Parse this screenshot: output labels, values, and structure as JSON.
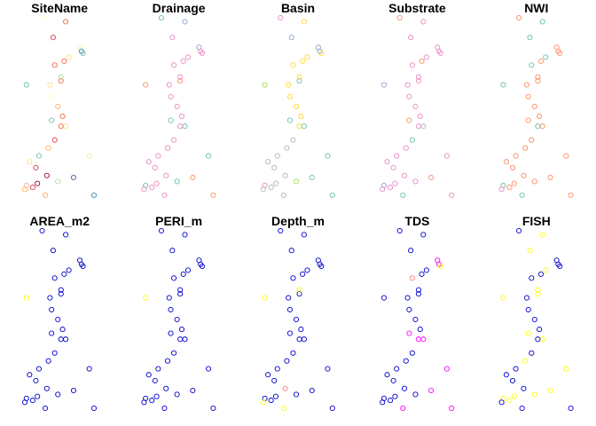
{
  "chart_data": {
    "type": "scatter",
    "layout": {
      "rows": 2,
      "cols": 5
    },
    "marker": "open-circle",
    "points": [
      [
        1.0,
        0.9
      ],
      [
        0.0,
        0.56
      ],
      [
        2.2,
        0.58
      ],
      [
        1.6,
        0.38
      ],
      [
        2.5,
        0.35
      ],
      [
        0.0,
        0.05
      ],
      [
        2.0,
        0.07
      ],
      [
        4.0,
        0.2
      ],
      [
        3.0,
        0.09
      ],
      [
        4.3,
        0.0
      ],
      [
        2.5,
        0.88
      ],
      [
        1.7,
        0.8
      ],
      [
        3.4,
        0.75
      ],
      [
        3.5,
        0.73
      ],
      [
        3.6,
        0.72
      ],
      [
        2.7,
        0.7
      ],
      [
        2.4,
        0.68
      ],
      [
        1.8,
        0.66
      ],
      [
        2.2,
        0.6
      ],
      [
        1.5,
        0.56
      ],
      [
        1.6,
        0.5
      ],
      [
        2.0,
        0.45
      ],
      [
        2.3,
        0.4
      ],
      [
        2.2,
        0.35
      ],
      [
        1.8,
        0.28
      ],
      [
        1.4,
        0.24
      ],
      [
        0.8,
        0.2
      ],
      [
        0.2,
        0.17
      ],
      [
        0.6,
        0.14
      ],
      [
        1.3,
        0.1
      ],
      [
        0.7,
        0.06
      ],
      [
        0.4,
        0.04
      ],
      [
        -0.1,
        0.03
      ],
      [
        1.2,
        0.0
      ]
    ],
    "panels": [
      {
        "title": "SiteName",
        "colors": [
          "#FFFFBF",
          "#66C2A5",
          "#F46D43",
          "#66C2A5",
          "#FEE08B",
          "#FDAEA0",
          "#ABDDA4",
          "#E6F598",
          "#5E4FA2",
          "#3288BD",
          "#F46D43",
          "#D53E4F",
          "#E6F598",
          "#3288BD",
          "#66C2A5",
          "#FEE08B",
          "#F46D43",
          "#F46D43",
          "#ABDDA4",
          "#FEE08B",
          "#FFFFBF",
          "#FDAE61",
          "#F46D43",
          "#F46D43",
          "#D53E4F",
          "#FDAE61",
          "#66C2A5",
          "#FEE08B",
          "#D53E4F",
          "#9E0142",
          "#9E0142",
          "#D53E4F",
          "#FDAE61",
          "#FDAE61"
        ]
      },
      {
        "title": "Drainage",
        "colors": [
          "#66C2A5",
          "#FC8D62",
          "#FC8D62",
          "#66C2A5",
          "#66C2A5",
          "#66C2A5",
          "#66C2A5",
          "#66C2A5",
          "#FC8D62",
          "#FC8D62",
          "#8DA0CB",
          "#E78AC3",
          "#8DA0CB",
          "#E78AC3",
          "#E78AC3",
          "#E78AC3",
          "#E78AC3",
          "#E78AC3",
          "#E78AC3",
          "#E78AC3",
          "#E78AC3",
          "#E78AC3",
          "#E78AC3",
          "#E78AC3",
          "#E78AC3",
          "#E78AC3",
          "#E78AC3",
          "#E78AC3",
          "#E78AC3",
          "#E78AC3",
          "#E78AC3",
          "#E78AC3",
          "#E78AC3",
          "#E78AC3"
        ]
      },
      {
        "title": "Basin",
        "colors": [
          "#E78AC3",
          "#A6D854",
          "#66C2A5",
          "#66C2A5",
          "#66C2A5",
          "#E78AC3",
          "#A6D854",
          "#66C2A5",
          "#66C2A5",
          "#66C2A5",
          "#FFD92F",
          "#8DA0CB",
          "#8DA0CB",
          "#8DA0CB",
          "#FFD92F",
          "#FFD92F",
          "#FFD92F",
          "#FFD92F",
          "#FFD92F",
          "#FFD92F",
          "#FFD92F",
          "#FFD92F",
          "#FFD92F",
          "#FFD92F",
          "#B3B3B3",
          "#B3B3B3",
          "#B3B3B3",
          "#B3B3B3",
          "#B3B3B3",
          "#B3B3B3",
          "#B3B3B3",
          "#B3B3B3",
          "#B3B3B3",
          "#B3B3B3"
        ]
      },
      {
        "title": "Substrate",
        "colors": [
          "#FC8D62",
          "#8DA0CB",
          "#E78AC3",
          "#FC8D62",
          "#B3B3B3",
          "#8DA0CB",
          "#E78AC3",
          "#E78AC3",
          "#FC8D62",
          "#E78AC3",
          "#E78AC3",
          "#E78AC3",
          "#E78AC3",
          "#E78AC3",
          "#E78AC3",
          "#E78AC3",
          "#FC8D62",
          "#E78AC3",
          "#E78AC3",
          "#E78AC3",
          "#E78AC3",
          "#E78AC3",
          "#E78AC3",
          "#E78AC3",
          "#66C2A5",
          "#E78AC3",
          "#E78AC3",
          "#E78AC3",
          "#E78AC3",
          "#E78AC3",
          "#E78AC3",
          "#E78AC3",
          "#E78AC3",
          "#66C2A5"
        ]
      },
      {
        "title": "NWI",
        "colors": [
          "#FC8D62",
          "#66C2A5",
          "#FC8D62",
          "#FC8D62",
          "#FC8D62",
          "#66C2A5",
          "#FC8D62",
          "#FC8D62",
          "#FC8D62",
          "#FC8D62",
          "#66C2A5",
          "#66C2A5",
          "#FC8D62",
          "#FC8D62",
          "#FC8D62",
          "#66C2A5",
          "#FC8D62",
          "#66C2A5",
          "#FC8D62",
          "#FC8D62",
          "#FC8D62",
          "#FC8D62",
          "#FC8D62",
          "#66C2A5",
          "#FC8D62",
          "#FC8D62",
          "#FC8D62",
          "#FC8D62",
          "#FC8D62",
          "#FC8D62",
          "#FC8D62",
          "#FC8D62",
          "#E78AC3",
          "#66C2A5"
        ]
      },
      {
        "title": "AREA_m2",
        "colors": [
          "#0000CC",
          "#FFFF00",
          "#0000CC",
          "#0000CC",
          "#0000CC",
          "#0000CC",
          "#0000CC",
          "#0000CC",
          "#0000CC",
          "#0000CC",
          "#0000CC",
          "#0000CC",
          "#0000CC",
          "#0000CC",
          "#0000CC",
          "#0000CC",
          "#0000CC",
          "#0000CC",
          "#0000CC",
          "#0000CC",
          "#0000CC",
          "#0000CC",
          "#0000CC",
          "#0000CC",
          "#0000CC",
          "#0000CC",
          "#0000CC",
          "#0000CC",
          "#0000CC",
          "#0000CC",
          "#0000CC",
          "#0000CC",
          "#0000CC",
          "#0000CC"
        ]
      },
      {
        "title": "PERI_m",
        "colors": [
          "#0000CC",
          "#FFFF00",
          "#0000CC",
          "#0000CC",
          "#0000CC",
          "#0000CC",
          "#0000CC",
          "#0000CC",
          "#0000CC",
          "#0000CC",
          "#0000CC",
          "#0000CC",
          "#0000CC",
          "#0000CC",
          "#0000CC",
          "#0000CC",
          "#0000CC",
          "#0000CC",
          "#0000CC",
          "#0000CC",
          "#0000CC",
          "#0000CC",
          "#0000CC",
          "#0000CC",
          "#0000CC",
          "#0000CC",
          "#0000CC",
          "#0000CC",
          "#0000CC",
          "#0000CC",
          "#0000CC",
          "#0000CC",
          "#0000CC",
          "#0000CC"
        ]
      },
      {
        "title": "Depth_m",
        "colors": [
          "#0000CC",
          "#FFFF00",
          "#0000CC",
          "#0000CC",
          "#0000CC",
          "#0000CC",
          "#0000CC",
          "#0000CC",
          "#0000CC",
          "#0000CC",
          "#0000CC",
          "#0000CC",
          "#0000CC",
          "#0000CC",
          "#0000CC",
          "#0000CC",
          "#0000CC",
          "#0000CC",
          "#FFFF00",
          "#0000CC",
          "#0000CC",
          "#0000CC",
          "#0000CC",
          "#0000CC",
          "#0000CC",
          "#0000CC",
          "#0000CC",
          "#0000CC",
          "#0000CC",
          "#FF8080",
          "#0000CC",
          "#0000CC",
          "#FFFF00",
          "#FFFF00"
        ]
      },
      {
        "title": "TDS",
        "colors": [
          "#0000CC",
          "#0000CC",
          "#0000CC",
          "#FF00FF",
          "#FF00FF",
          "#0000CC",
          "#0000CC",
          "#FF00FF",
          "#FF00FF",
          "#FF00FF",
          "#0000CC",
          "#0000CC",
          "#FF00FF",
          "#FF00FF",
          "#FFFF00",
          "#0000CC",
          "#0000CC",
          "#FF8080",
          "#0000CC",
          "#0000CC",
          "#0000CC",
          "#0000CC",
          "#0000CC",
          "#FF00FF",
          "#0000CC",
          "#0000CC",
          "#0000CC",
          "#0000CC",
          "#0000CC",
          "#0000CC",
          "#0000CC",
          "#0000CC",
          "#0000CC",
          "#FF00FF"
        ]
      },
      {
        "title": "FISH",
        "colors": [
          "#0000CC",
          "#FFFF00",
          "#FFFF00",
          "#FFFF00",
          "#FFFF00",
          "#FFFF00",
          "#FFFF00",
          "#FFFF00",
          "#FFFF00",
          "#0000CC",
          "#FFFF00",
          "#FFFF00",
          "#0000CC",
          "#0000CC",
          "#0000CC",
          "#FFFF00",
          "#0000CC",
          "#0000CC",
          "#FFFF00",
          "#0000CC",
          "#0000CC",
          "#0000CC",
          "#0000CC",
          "#0000CC",
          "#0000CC",
          "#FFFF00",
          "#0000CC",
          "#0000CC",
          "#0000CC",
          "#0000CC",
          "#FFFF00",
          "#FFFF00",
          "#0000CC",
          "#0000CC"
        ]
      }
    ]
  }
}
